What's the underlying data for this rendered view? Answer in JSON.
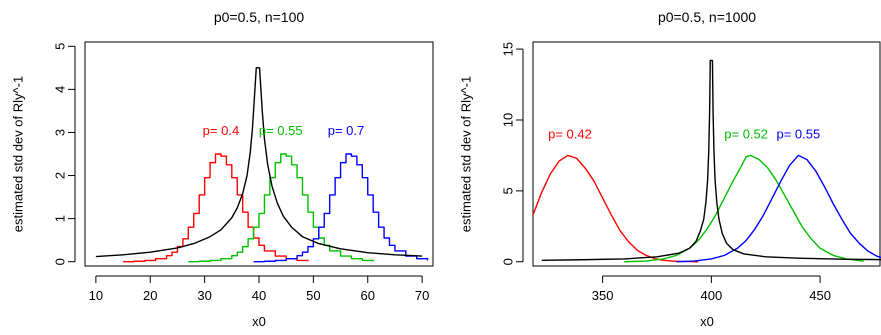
{
  "chart_data": [
    {
      "type": "line",
      "title": "p0=0.5, n=100",
      "xlabel": "x0",
      "ylabel": "estimated std dev of Rly^-1",
      "xlim": [
        8,
        72
      ],
      "ylim": [
        -0.1,
        5.1
      ],
      "xticks": [
        10,
        20,
        30,
        40,
        50,
        60,
        70
      ],
      "yticks": [
        0,
        1,
        2,
        3,
        4,
        5
      ],
      "series": [
        {
          "name": "p= 0.4",
          "color": "#ff0000",
          "style": "step",
          "label_at": [
            33,
            3.05
          ],
          "x": [
            15,
            17,
            19,
            21,
            23,
            24,
            25,
            26,
            27,
            28,
            29,
            30,
            31,
            32,
            33,
            34,
            35,
            36,
            37,
            38,
            39,
            40,
            41,
            43,
            45,
            47,
            49
          ],
          "y": [
            0,
            0.01,
            0.03,
            0.07,
            0.14,
            0.22,
            0.35,
            0.53,
            0.8,
            1.12,
            1.55,
            1.95,
            2.3,
            2.5,
            2.45,
            2.25,
            1.95,
            1.55,
            1.15,
            0.8,
            0.55,
            0.38,
            0.25,
            0.13,
            0.07,
            0.03,
            0.01
          ]
        },
        {
          "name": "p= 0.55",
          "color": "#00c000",
          "style": "step",
          "label_at": [
            44,
            3.05
          ],
          "x": [
            27,
            29,
            31,
            33,
            35,
            36,
            37,
            38,
            39,
            40,
            41,
            42,
            43,
            44,
            45,
            46,
            47,
            48,
            49,
            50,
            51,
            52,
            53,
            55,
            57,
            59,
            61
          ],
          "y": [
            0,
            0.01,
            0.03,
            0.07,
            0.14,
            0.22,
            0.35,
            0.53,
            0.8,
            1.12,
            1.55,
            1.95,
            2.3,
            2.5,
            2.45,
            2.25,
            1.95,
            1.55,
            1.15,
            0.8,
            0.55,
            0.38,
            0.25,
            0.13,
            0.07,
            0.03,
            0.01
          ]
        },
        {
          "name": "p= 0.7",
          "color": "#0000ff",
          "style": "step",
          "label_at": [
            56,
            3.05
          ],
          "x": [
            39,
            41,
            43,
            45,
            47,
            48,
            49,
            50,
            51,
            52,
            53,
            54,
            55,
            56,
            57,
            58,
            59,
            60,
            61,
            62,
            63,
            64,
            65,
            67,
            69,
            71
          ],
          "y": [
            0,
            0.01,
            0.03,
            0.07,
            0.14,
            0.22,
            0.35,
            0.53,
            0.8,
            1.12,
            1.55,
            1.95,
            2.3,
            2.5,
            2.45,
            2.25,
            1.95,
            1.55,
            1.15,
            0.8,
            0.55,
            0.38,
            0.25,
            0.13,
            0.07,
            0.03
          ]
        },
        {
          "color": "#000000",
          "style": "line",
          "x": [
            10,
            15,
            20,
            25,
            28,
            31,
            33,
            35,
            36,
            37,
            37.8,
            38.4,
            38.8,
            39.1,
            39.3,
            39.5,
            40.1,
            40.3,
            40.6,
            41.0,
            41.6,
            42.4,
            43.4,
            44.5,
            46,
            48,
            51,
            55,
            60,
            65,
            70
          ],
          "y": [
            0.12,
            0.16,
            0.22,
            0.32,
            0.42,
            0.58,
            0.74,
            1.02,
            1.25,
            1.58,
            2.0,
            2.55,
            3.1,
            3.7,
            4.1,
            4.5,
            4.5,
            4.1,
            3.5,
            2.85,
            2.25,
            1.75,
            1.35,
            1.05,
            0.8,
            0.58,
            0.42,
            0.3,
            0.21,
            0.16,
            0.13
          ]
        }
      ]
    },
    {
      "type": "line",
      "title": "p0=0.5, n=1000",
      "xlabel": "x0",
      "ylabel": "estimated std dev of Rly^-1",
      "xlim": [
        318,
        478
      ],
      "ylim": [
        -0.3,
        15.5
      ],
      "xticks": [
        350,
        400,
        450
      ],
      "yticks": [
        0,
        5,
        10,
        15
      ],
      "series": [
        {
          "name": "p= 0.42",
          "color": "#ff0000",
          "style": "line",
          "label_at": [
            335,
            9.0
          ],
          "x": [
            318,
            322,
            326,
            330,
            334,
            338,
            342,
            346,
            350,
            354,
            358,
            362,
            366,
            370,
            374,
            378,
            382,
            386,
            390,
            394
          ],
          "y": [
            3.3,
            4.9,
            6.2,
            7.1,
            7.5,
            7.3,
            6.6,
            5.7,
            4.5,
            3.3,
            2.2,
            1.4,
            0.8,
            0.45,
            0.22,
            0.1,
            0.05,
            0.02,
            0.01,
            0
          ]
        },
        {
          "name": "p= 0.52",
          "color": "#00c000",
          "style": "line",
          "label_at": [
            416,
            9.0
          ],
          "x": [
            360,
            370,
            378,
            384,
            390,
            394,
            398,
            402,
            406,
            410,
            414,
            416,
            418,
            422,
            426,
            430,
            434,
            438,
            442,
            446,
            450,
            456,
            462,
            470
          ],
          "y": [
            0,
            0.05,
            0.2,
            0.45,
            0.95,
            1.5,
            2.3,
            3.3,
            4.5,
            5.7,
            6.8,
            7.4,
            7.5,
            7.2,
            6.6,
            5.7,
            4.6,
            3.5,
            2.4,
            1.6,
            0.95,
            0.45,
            0.2,
            0.05
          ]
        },
        {
          "name": "p= 0.55",
          "color": "#0000ff",
          "style": "line",
          "label_at": [
            440,
            9.0
          ],
          "x": [
            384,
            392,
            400,
            406,
            412,
            416,
            420,
            424,
            428,
            432,
            436,
            440,
            444,
            448,
            452,
            456,
            460,
            464,
            468,
            472,
            476,
            478
          ],
          "y": [
            0,
            0.05,
            0.2,
            0.45,
            0.95,
            1.5,
            2.3,
            3.3,
            4.5,
            5.7,
            6.8,
            7.5,
            7.2,
            6.4,
            5.3,
            4.1,
            3.0,
            2.0,
            1.3,
            0.75,
            0.4,
            0.3
          ]
        },
        {
          "color": "#000000",
          "style": "line",
          "x": [
            322,
            340,
            360,
            375,
            385,
            390,
            393,
            395,
            396.5,
            397.5,
            398.3,
            398.8,
            399.2,
            399.5,
            400.5,
            400.8,
            401.2,
            401.7,
            402.5,
            403.5,
            405,
            407,
            410,
            415,
            425,
            440,
            460,
            478
          ],
          "y": [
            0.1,
            0.14,
            0.2,
            0.35,
            0.6,
            0.95,
            1.45,
            2.2,
            3.0,
            4.2,
            5.8,
            7.8,
            10.5,
            14.2,
            14.2,
            10.5,
            7.8,
            5.8,
            4.2,
            3.0,
            2.0,
            1.3,
            0.85,
            0.55,
            0.35,
            0.25,
            0.18,
            0.15
          ]
        }
      ]
    }
  ]
}
